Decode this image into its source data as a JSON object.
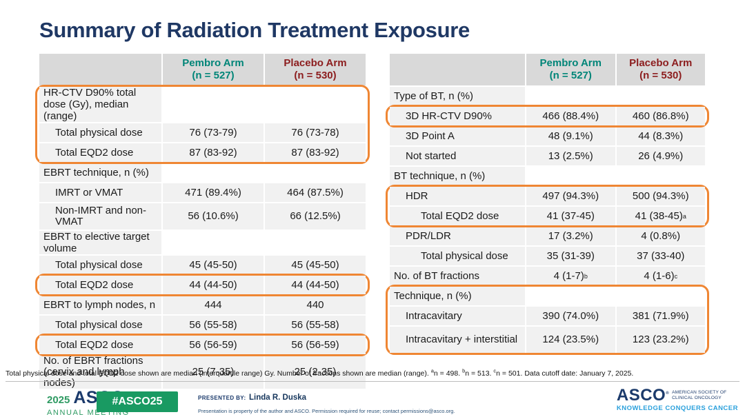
{
  "title": "Summary of Radiation Treatment Exposure",
  "colors": {
    "title_navy": "#1F3864",
    "pembro_teal": "#008578",
    "placebo_maroon": "#8C1D1E",
    "highlight_orange": "#EF8633",
    "header_gray": "#D9D9D9",
    "row_gray": "#F1F1F1",
    "footer_green": "#199A62",
    "asco_blue": "#1B3A6B",
    "tagline_blue": "#2AA0DC"
  },
  "columns": {
    "pembro_name": "Pembro Arm",
    "pembro_n": "(n = 527)",
    "placebo_name": "Placebo Arm",
    "placebo_n": "(n = 530)"
  },
  "left_table": {
    "rows": [
      {
        "label": "HR-CTV D90% total dose (Gy), median (range)"
      },
      {
        "label": "Total physical dose",
        "pembro": "76 (73-79)",
        "placebo": "76 (73-78)"
      },
      {
        "label": "Total EQD2 dose",
        "pembro": "87 (83-92)",
        "placebo": "87 (83-92)"
      },
      {
        "label": "EBRT technique, n (%)"
      },
      {
        "label": "IMRT or VMAT",
        "pembro": "471 (89.4%)",
        "placebo": "464 (87.5%)"
      },
      {
        "label": "Non-IMRT and non-VMAT",
        "pembro": "56 (10.6%)",
        "placebo": "66 (12.5%)"
      },
      {
        "label": "EBRT to elective target volume"
      },
      {
        "label": "Total physical dose",
        "pembro": "45 (45-50)",
        "placebo": "45 (45-50)"
      },
      {
        "label": "Total EQD2 dose",
        "pembro": "44 (44-50)",
        "placebo": "44 (44-50)"
      },
      {
        "label": "EBRT to lymph nodes, n",
        "pembro": "444",
        "placebo": "440"
      },
      {
        "label": "Total physical dose",
        "pembro": "56 (55-58)",
        "placebo": "56 (55-58)"
      },
      {
        "label": "Total EQD2 dose",
        "pembro": "56 (56-59)",
        "placebo": "56 (56-59)"
      },
      {
        "label": "No. of EBRT fractions (cervix and lymph nodes)",
        "pembro": "25 (7-35)",
        "placebo": "25 (2-35)"
      }
    ]
  },
  "right_table": {
    "rows": [
      {
        "label": "Type of BT, n (%)"
      },
      {
        "label": "3D HR-CTV D90%",
        "pembro": "466 (88.4%)",
        "placebo": "460 (86.8%)"
      },
      {
        "label": "3D Point A",
        "pembro": "48 (9.1%)",
        "placebo": "44 (8.3%)"
      },
      {
        "label": "Not started",
        "pembro": "13 (2.5%)",
        "placebo": "26 (4.9%)"
      },
      {
        "label": "BT technique, n (%)"
      },
      {
        "label": "HDR",
        "pembro": "497 (94.3%)",
        "placebo": "500 (94.3%)"
      },
      {
        "label": "Total EQD2 dose",
        "pembro": "41 (37-45)",
        "placebo": "41 (38-45)",
        "placebo_sup": "a"
      },
      {
        "label": "PDR/LDR",
        "pembro": "17 (3.2%)",
        "placebo": "4 (0.8%)"
      },
      {
        "label": "Total physical dose",
        "pembro": "35 (31-39)",
        "placebo": "37 (33-40)"
      },
      {
        "label": "No. of BT fractions",
        "pembro": "4 (1-7)",
        "pembro_sup": "b",
        "placebo": "4 (1-6)",
        "placebo_sup": "c"
      },
      {
        "label": "Technique, n (%)"
      },
      {
        "label": "Intracavitary",
        "pembro": "390 (74.0%)",
        "placebo": "381 (71.9%)"
      },
      {
        "label": "Intracavitary + interstitial",
        "pembro": "124 (23.5%)",
        "placebo": "123 (23.2%)"
      }
    ]
  },
  "footnote": {
    "main": "Total physical dose and total EQD2 dose shown are median (interquartile range) Gy. Number of fractions shown are median (range).",
    "notes": [
      {
        "sup": "a",
        "text": "n = 498."
      },
      {
        "sup": "b",
        "text": "n = 513."
      },
      {
        "sup": "c",
        "text": "n = 501."
      }
    ],
    "cutoff": "Data cutoff date: January 7, 2025."
  },
  "footer": {
    "left_logo": {
      "year": "2025",
      "asco": "ASCO",
      "reg": "®",
      "meeting": "ANNUAL MEETING"
    },
    "badge": "#ASCO25",
    "presented_label": "PRESENTED BY:",
    "presenter": "Linda R. Duska",
    "disclaimer": "Presentation is property of the author and ASCO. Permission required for reuse; contact permissions@asco.org.",
    "right_logo": {
      "asco": "ASCO",
      "reg": "®",
      "society1": "AMERICAN SOCIETY OF",
      "society2": "CLINICAL ONCOLOGY",
      "tagline": "KNOWLEDGE CONQUERS CANCER"
    }
  }
}
